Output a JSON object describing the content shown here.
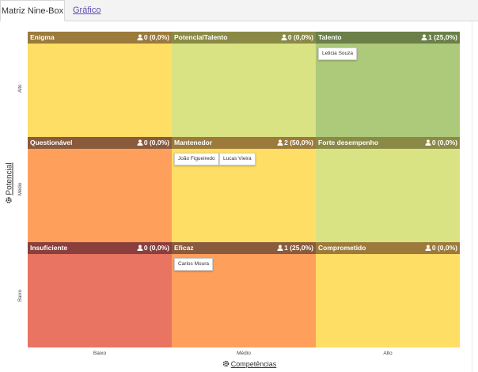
{
  "tabs": [
    {
      "label": "Matriz Nine-Box",
      "active": true
    },
    {
      "label": "Gráfico",
      "active": false
    }
  ],
  "y_axis": {
    "title": "Potencial",
    "ticks": [
      "Alto",
      "Médio",
      "Baixo"
    ],
    "icon": "gear-icon"
  },
  "x_axis": {
    "title": "Competências",
    "ticks": [
      "Baixo",
      "Médio",
      "Alto"
    ],
    "icon": "gear-icon"
  },
  "cells": [
    {
      "name": "Enigma",
      "count": "0 (0,0%)",
      "header_color": "#9b7a3c",
      "bg_color": "#fede64",
      "people": []
    },
    {
      "name": "PotencialTalento",
      "count": "0 (0,0%)",
      "header_color": "#8a8a46",
      "bg_color": "#dae384",
      "people": []
    },
    {
      "name": "Talento",
      "count": "1 (25,0%)",
      "header_color": "#6a8048",
      "bg_color": "#adc97a",
      "people": [
        "Leticia Souza"
      ]
    },
    {
      "name": "Questionável",
      "count": "0 (0,0%)",
      "header_color": "#8a5a3d",
      "bg_color": "#fea05c",
      "people": []
    },
    {
      "name": "Mantenedor",
      "count": "2 (50,0%)",
      "header_color": "#9b7a3c",
      "bg_color": "#fede64",
      "people": [
        "João Figueiredo",
        "Lucas Vieira"
      ]
    },
    {
      "name": "Forte desempenho",
      "count": "0 (0,0%)",
      "header_color": "#8a8a46",
      "bg_color": "#dae384",
      "people": []
    },
    {
      "name": "Insuficiente",
      "count": "0 (0,0%)",
      "header_color": "#8a3f3c",
      "bg_color": "#e87461",
      "people": []
    },
    {
      "name": "Eficaz",
      "count": "1 (25,0%)",
      "header_color": "#8a5a3d",
      "bg_color": "#fea05c",
      "people": [
        "Carlos Moura"
      ]
    },
    {
      "name": "Comprometido",
      "count": "0 (0,0%)",
      "header_color": "#9b7a3c",
      "bg_color": "#fede64",
      "people": []
    }
  ]
}
